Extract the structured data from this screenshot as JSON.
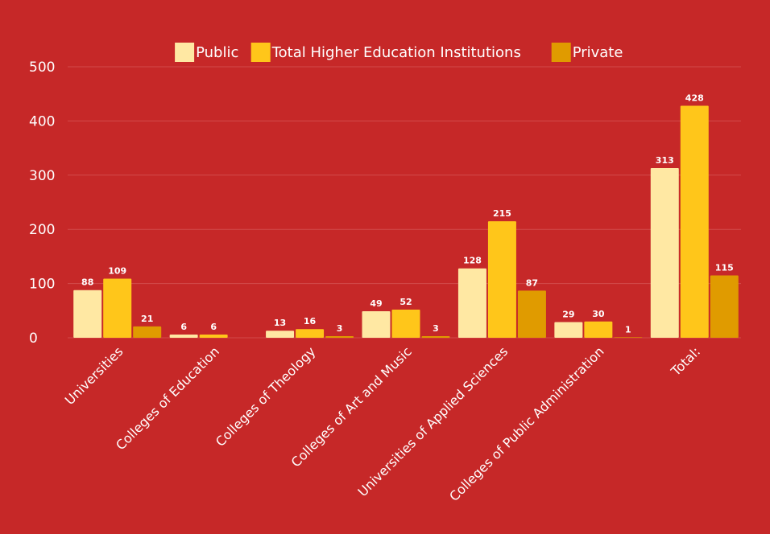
{
  "chart_data": {
    "type": "bar",
    "categories": [
      "Universities",
      "Colleges of Education",
      "Colleges of Theology",
      "Colleges of Art and Music",
      "Universities of Applied Sciences",
      "Colleges of Public Administration",
      "Total:"
    ],
    "series": [
      {
        "name": "Public",
        "color": "#ffe8a3",
        "values": [
          88,
          6,
          13,
          49,
          128,
          29,
          313
        ]
      },
      {
        "name": "Total Higher Education Institutions",
        "color": "#ffc61a",
        "values": [
          109,
          6,
          16,
          52,
          215,
          30,
          428
        ]
      },
      {
        "name": "Private",
        "color": "#e09b00",
        "values": [
          21,
          null,
          3,
          3,
          87,
          1,
          115
        ]
      }
    ],
    "ylim": [
      0,
      500
    ],
    "yticks": [
      0,
      100,
      200,
      300,
      400,
      500
    ],
    "grid": true,
    "legend_position": "top",
    "background": "#c62828"
  }
}
